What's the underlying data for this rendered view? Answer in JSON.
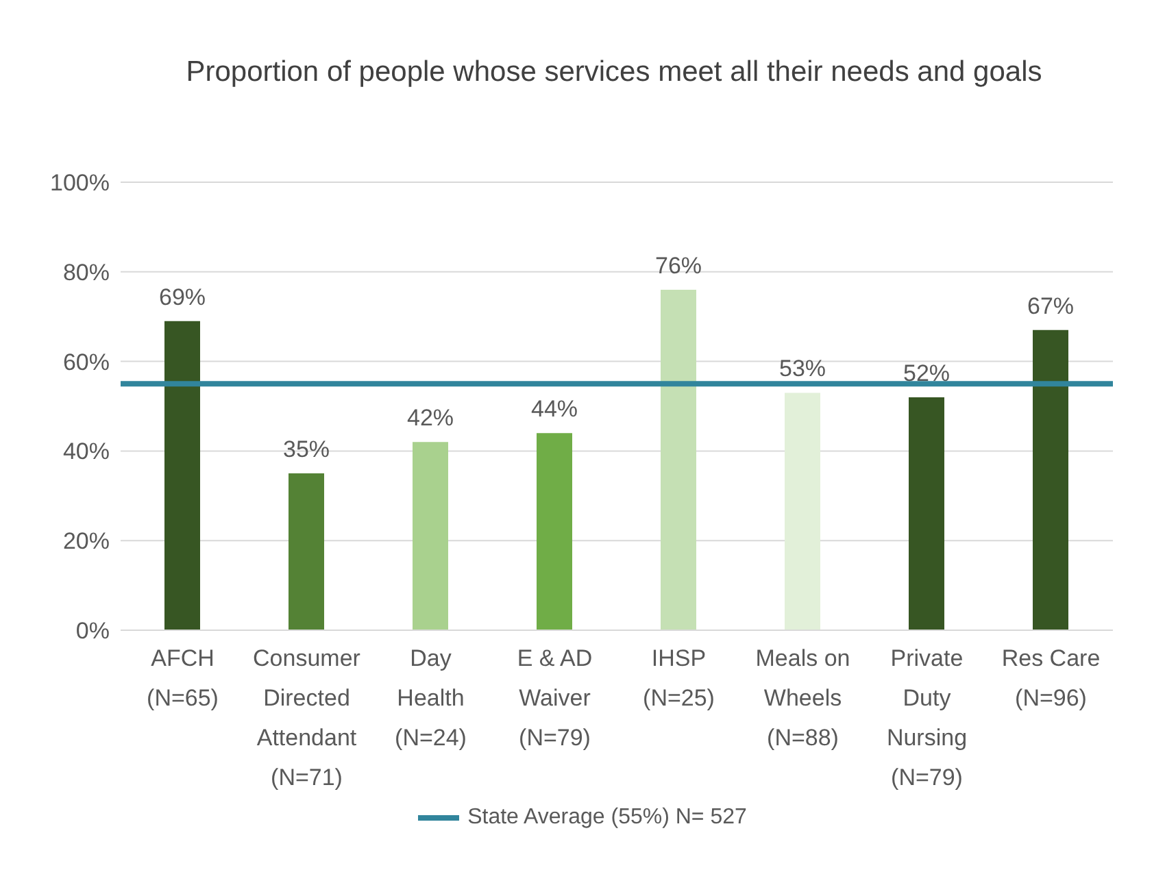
{
  "chart_data": {
    "type": "bar",
    "title": "Proportion of people whose services meet all their needs and goals",
    "categories": [
      "AFCH\n(N=65)",
      "Consumer\nDirected\nAttendant\n(N=71)",
      "Day\nHealth\n(N=24)",
      "E & AD\nWaiver\n(N=79)",
      "IHSP\n(N=25)",
      "Meals on\nWheels\n(N=88)",
      "Private\nDuty\nNursing\n(N=79)",
      "Res Care\n(N=96)"
    ],
    "values": [
      69,
      35,
      42,
      44,
      76,
      53,
      52,
      67
    ],
    "colors": [
      "#375623",
      "#548235",
      "#a9d18e",
      "#70ad47",
      "#c5e0b4",
      "#e2f0d9",
      "#375623",
      "#375623"
    ],
    "value_labels": [
      "69%",
      "35%",
      "42%",
      "44%",
      "76%",
      "53%",
      "52%",
      "67%"
    ],
    "ylim": [
      0,
      100
    ],
    "yticks": [
      {
        "value": 0,
        "label": "0%"
      },
      {
        "value": 20,
        "label": "20%"
      },
      {
        "value": 40,
        "label": "40%"
      },
      {
        "value": 60,
        "label": "60%"
      },
      {
        "value": 80,
        "label": "80%"
      },
      {
        "value": 100,
        "label": "100%"
      }
    ],
    "grid": "y",
    "ref_lines": [
      {
        "axis": "y",
        "value": 55,
        "label": "State Average (55%) N= 527",
        "color": "#31859c"
      }
    ]
  }
}
